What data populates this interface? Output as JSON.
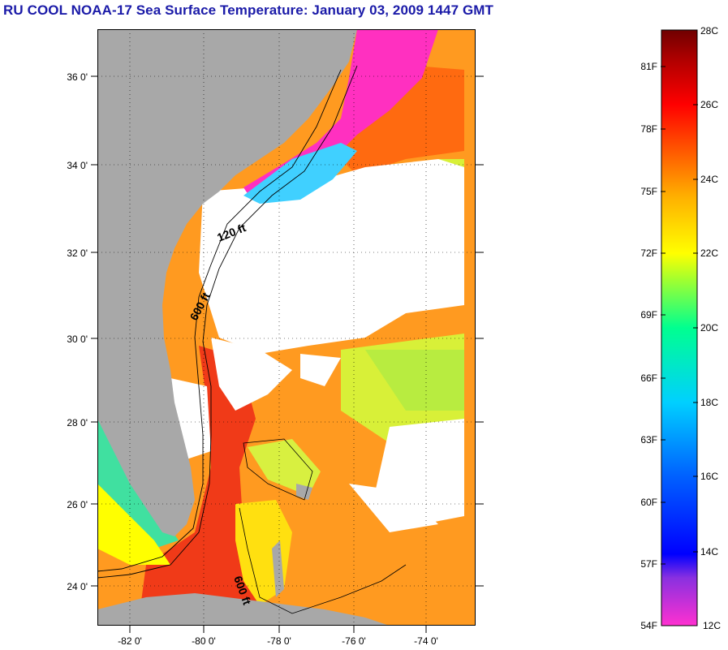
{
  "title": "RU COOL  NOAA-17  Sea Surface Temperature:  January 03, 2009 1447 GMT",
  "map": {
    "lat_labels": [
      "36 0'",
      "34 0'",
      "32 0'",
      "30 0'",
      "28 0'",
      "26 0'",
      "24 0'"
    ],
    "lon_labels": [
      "-82 0'",
      "-80 0'",
      "-78 0'",
      "-76 0'",
      "-74 0'"
    ],
    "contour_labels": [
      "120 ft",
      "600 ft",
      "600 ft"
    ],
    "colors": {
      "land": "#a8a8a8",
      "cloud": "#ffffff",
      "gulfstream": "#f04818"
    }
  },
  "colorbar": {
    "f_labels": [
      "81F",
      "78F",
      "75F",
      "72F",
      "69F",
      "66F",
      "63F",
      "60F",
      "57F",
      "54F"
    ],
    "c_labels": [
      "28C",
      "26C",
      "24C",
      "22C",
      "20C",
      "18C",
      "16C",
      "14C",
      "12C"
    ],
    "scale_colors": [
      "#ff30d0",
      "#8a30e0",
      "#0000ff",
      "#0060ff",
      "#00d0ff",
      "#00ff90",
      "#a0ff30",
      "#ffff00",
      "#ffb000",
      "#ff6000",
      "#ff0000",
      "#b00000",
      "#700000"
    ]
  }
}
